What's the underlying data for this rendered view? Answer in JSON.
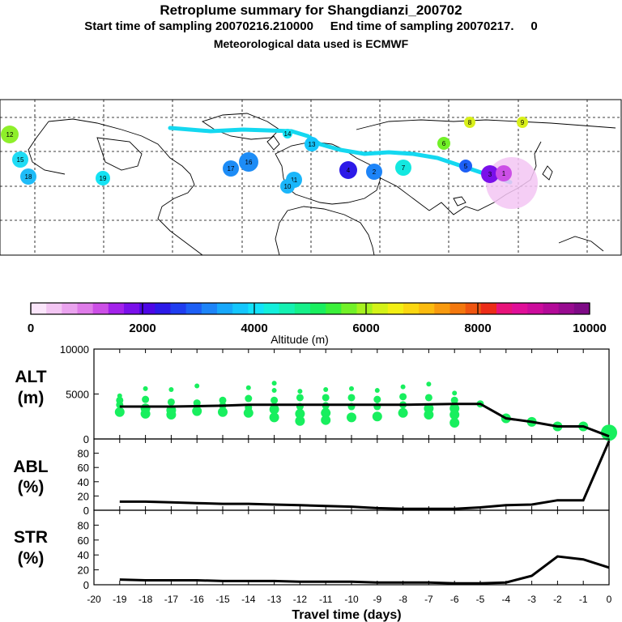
{
  "header": {
    "title": "Retroplume summary for Shangdianzi_200702",
    "sampling_line": "Start time of sampling 20070216.210000     End time of sampling 20070217.     0",
    "met_line": "Meteorological data used is ECMWF"
  },
  "colorbar": {
    "ticks": [
      "0",
      "2000",
      "4000",
      "6000",
      "8000",
      "10000"
    ],
    "label": "Altitude (m)",
    "colors": [
      "#fbe6fb",
      "#f3c6f3",
      "#eaa3ee",
      "#df7ce9",
      "#cc4fe6",
      "#a322ea",
      "#7a10ea",
      "#4d07e6",
      "#2c1ae8",
      "#1f3df0",
      "#1d5ff5",
      "#1d84f8",
      "#17a8fb",
      "#14c6fd",
      "#12e2fb",
      "#13efdc",
      "#14f1b2",
      "#16f08a",
      "#19ef5f",
      "#3bf03a",
      "#72f128",
      "#a6f21f",
      "#d4f218",
      "#f3ef14",
      "#fbd711",
      "#fbbb0f",
      "#f89a0f",
      "#f3780e",
      "#ef5510",
      "#ec2c18",
      "#e8137a",
      "#e00f98",
      "#cc0c9c",
      "#b30a98",
      "#980b90",
      "#7e0a86"
    ]
  },
  "map_labels": [
    "12",
    "15",
    "18",
    "19",
    "16",
    "17",
    "11",
    "10",
    "9",
    "8",
    "7",
    "6",
    "5",
    "4",
    "3",
    "2",
    "1",
    "13",
    "14"
  ],
  "chart_data": [
    {
      "type": "line",
      "panel": "ALT",
      "ylabel": "ALT (m)",
      "ylim": [
        0,
        10000
      ],
      "yticks": [
        "10000",
        "5000",
        "0"
      ],
      "x": [
        -19,
        -18,
        -17,
        -16,
        -15,
        -14,
        -13,
        -12,
        -11,
        -10,
        -9,
        -8,
        -7,
        -6,
        -5,
        -4,
        -3,
        -2,
        -1,
        0
      ],
      "values": [
        3600,
        3600,
        3600,
        3650,
        3700,
        3800,
        3800,
        3800,
        3800,
        3800,
        3800,
        3800,
        3850,
        3900,
        3900,
        2300,
        1900,
        1400,
        1400,
        300
      ],
      "scatter_points": [
        {
          "x": -19,
          "y": 4800
        },
        {
          "x": -19,
          "y": 4300
        },
        {
          "x": -19,
          "y": 3800
        },
        {
          "x": -19,
          "y": 3000
        },
        {
          "x": -18,
          "y": 5600
        },
        {
          "x": -18,
          "y": 4400
        },
        {
          "x": -18,
          "y": 3400
        },
        {
          "x": -18,
          "y": 2800
        },
        {
          "x": -17,
          "y": 5500
        },
        {
          "x": -17,
          "y": 4100
        },
        {
          "x": -17,
          "y": 3200
        },
        {
          "x": -17,
          "y": 2700
        },
        {
          "x": -16,
          "y": 5900
        },
        {
          "x": -16,
          "y": 4000
        },
        {
          "x": -16,
          "y": 3100
        },
        {
          "x": -15,
          "y": 4300
        },
        {
          "x": -15,
          "y": 3700
        },
        {
          "x": -15,
          "y": 3000
        },
        {
          "x": -14,
          "y": 5700
        },
        {
          "x": -14,
          "y": 4500
        },
        {
          "x": -14,
          "y": 3500
        },
        {
          "x": -14,
          "y": 2900
        },
        {
          "x": -13,
          "y": 6200
        },
        {
          "x": -13,
          "y": 5400
        },
        {
          "x": -13,
          "y": 4300
        },
        {
          "x": -13,
          "y": 3300
        },
        {
          "x": -13,
          "y": 2400
        },
        {
          "x": -12,
          "y": 5300
        },
        {
          "x": -12,
          "y": 4600
        },
        {
          "x": -12,
          "y": 3600
        },
        {
          "x": -12,
          "y": 2800
        },
        {
          "x": -12,
          "y": 2000
        },
        {
          "x": -11,
          "y": 5500
        },
        {
          "x": -11,
          "y": 4600
        },
        {
          "x": -11,
          "y": 3700
        },
        {
          "x": -11,
          "y": 2900
        },
        {
          "x": -11,
          "y": 2100
        },
        {
          "x": -10,
          "y": 5600
        },
        {
          "x": -10,
          "y": 4600
        },
        {
          "x": -10,
          "y": 3600
        },
        {
          "x": -10,
          "y": 2400
        },
        {
          "x": -9,
          "y": 5400
        },
        {
          "x": -9,
          "y": 4400
        },
        {
          "x": -9,
          "y": 3600
        },
        {
          "x": -9,
          "y": 2500
        },
        {
          "x": -8,
          "y": 5800
        },
        {
          "x": -8,
          "y": 4700
        },
        {
          "x": -8,
          "y": 3800
        },
        {
          "x": -8,
          "y": 2900
        },
        {
          "x": -7,
          "y": 6100
        },
        {
          "x": -7,
          "y": 4600
        },
        {
          "x": -7,
          "y": 3400
        },
        {
          "x": -7,
          "y": 2700
        },
        {
          "x": -6,
          "y": 5100
        },
        {
          "x": -6,
          "y": 4300
        },
        {
          "x": -6,
          "y": 3400
        },
        {
          "x": -6,
          "y": 2700
        },
        {
          "x": -6,
          "y": 1800
        },
        {
          "x": -5,
          "y": 3900
        },
        {
          "x": -4,
          "y": 2300
        },
        {
          "x": -3,
          "y": 1900
        },
        {
          "x": -2,
          "y": 1400
        },
        {
          "x": -1,
          "y": 1400
        },
        {
          "x": 0,
          "y": 700
        }
      ]
    },
    {
      "type": "line",
      "panel": "ABL",
      "ylabel": "ABL (%)",
      "ylim": [
        0,
        100
      ],
      "yticks": [
        "80",
        "60",
        "40",
        "20",
        "0"
      ],
      "x": [
        -19,
        -18,
        -17,
        -16,
        -15,
        -14,
        -13,
        -12,
        -11,
        -10,
        -9,
        -8,
        -7,
        -6,
        -5,
        -4,
        -3,
        -2,
        -1,
        0
      ],
      "values": [
        12,
        12,
        11,
        10,
        9,
        9,
        8,
        7,
        6,
        5,
        3,
        2,
        2,
        2,
        4,
        7,
        8,
        14,
        14,
        97
      ]
    },
    {
      "type": "line",
      "panel": "STR",
      "ylabel": "STR (%)",
      "ylim": [
        0,
        100
      ],
      "yticks": [
        "80",
        "60",
        "40",
        "20",
        "0"
      ],
      "xlabel": "Travel time (days)",
      "xticks": [
        "-20",
        "-19",
        "-18",
        "-17",
        "-16",
        "-15",
        "-14",
        "-13",
        "-12",
        "-11",
        "-10",
        "-9",
        "-8",
        "-7",
        "-6",
        "-5",
        "-4",
        "-3",
        "-2",
        "-1",
        "0"
      ],
      "x": [
        -19,
        -18,
        -17,
        -16,
        -15,
        -14,
        -13,
        -12,
        -11,
        -10,
        -9,
        -8,
        -7,
        -6,
        -5,
        -4,
        -3,
        -2,
        -1,
        0
      ],
      "values": [
        7,
        6,
        6,
        6,
        5,
        5,
        5,
        4,
        4,
        4,
        3,
        3,
        3,
        2,
        2,
        3,
        12,
        38,
        34,
        23
      ]
    }
  ]
}
